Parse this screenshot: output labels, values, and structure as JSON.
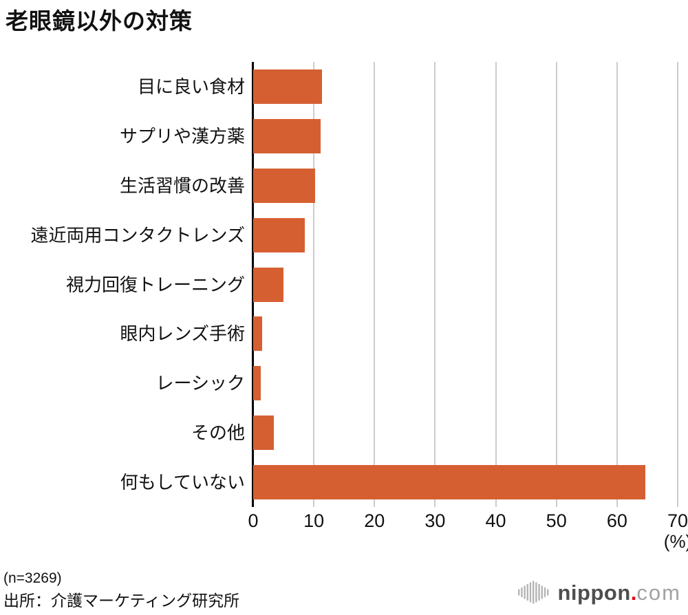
{
  "chart_data": {
    "type": "bar",
    "orientation": "horizontal",
    "title": "老眼鏡以外の対策",
    "categories": [
      "目に良い食材",
      "サプリや漢方薬",
      "生活習慣の改善",
      "遠近両用コンタクトレンズ",
      "視力回復トレーニング",
      "眼内レンズ手術",
      "レーシック",
      "その他",
      "何もしていない"
    ],
    "values": [
      11.3,
      11.1,
      10.2,
      8.5,
      5.0,
      1.5,
      1.2,
      3.4,
      64.7
    ],
    "xlabel": "(%)",
    "xlim": [
      0,
      70
    ],
    "xticks": [
      0,
      10,
      20,
      30,
      40,
      50,
      60,
      70
    ],
    "bar_color": "#d65f32",
    "grid": true,
    "gridline_color": "#cccccc",
    "axis_color": "#000000",
    "legend": "none"
  },
  "footer": {
    "sample_size": "(n=3269)",
    "source": "出所：介護マーケティング研究所"
  },
  "logo": {
    "brand": "nippon",
    "dot": ".",
    "tld": "com",
    "dot_color": "#e60012",
    "icon": "soundwave-bars-icon",
    "icon_color": "#b5b5b5"
  }
}
